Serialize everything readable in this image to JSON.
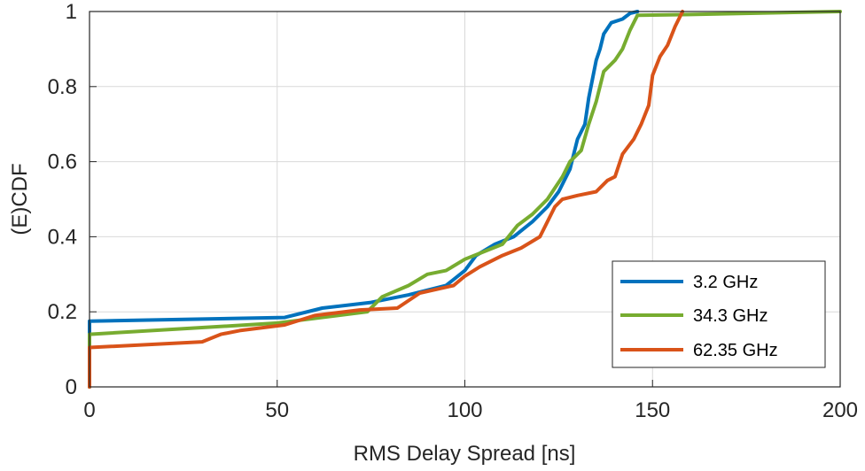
{
  "chart_data": {
    "type": "line",
    "xlabel": "RMS Delay Spread [ns]",
    "ylabel": "(E)CDF",
    "xlim": [
      0,
      200
    ],
    "ylim": [
      0,
      1
    ],
    "x_ticks": [
      "0",
      "50",
      "100",
      "150",
      "200"
    ],
    "y_ticks": [
      "0",
      "0.2",
      "0.4",
      "0.6",
      "0.8",
      "1"
    ],
    "grid": true,
    "legend_position": "bottom-right",
    "series": [
      {
        "name": "3.2 GHz",
        "color": "#0072BD",
        "points": [
          [
            0,
            0
          ],
          [
            0,
            0.175
          ],
          [
            52,
            0.185
          ],
          [
            62,
            0.21
          ],
          [
            75,
            0.225
          ],
          [
            85,
            0.245
          ],
          [
            95,
            0.27
          ],
          [
            100,
            0.31
          ],
          [
            103,
            0.35
          ],
          [
            108,
            0.38
          ],
          [
            113,
            0.4
          ],
          [
            118,
            0.44
          ],
          [
            122,
            0.48
          ],
          [
            125,
            0.52
          ],
          [
            128,
            0.58
          ],
          [
            130,
            0.66
          ],
          [
            132,
            0.7
          ],
          [
            133,
            0.77
          ],
          [
            134,
            0.82
          ],
          [
            135,
            0.87
          ],
          [
            136,
            0.9
          ],
          [
            137,
            0.94
          ],
          [
            139,
            0.97
          ],
          [
            142,
            0.98
          ],
          [
            144,
            0.995
          ],
          [
            146,
            1.0
          ]
        ]
      },
      {
        "name": "34.3 GHz",
        "color": "#77AC30",
        "points": [
          [
            0,
            0
          ],
          [
            0,
            0.14
          ],
          [
            25,
            0.155
          ],
          [
            50,
            0.17
          ],
          [
            74,
            0.2
          ],
          [
            78,
            0.24
          ],
          [
            85,
            0.27
          ],
          [
            90,
            0.3
          ],
          [
            95,
            0.31
          ],
          [
            100,
            0.34
          ],
          [
            105,
            0.36
          ],
          [
            110,
            0.38
          ],
          [
            114,
            0.43
          ],
          [
            118,
            0.46
          ],
          [
            122,
            0.5
          ],
          [
            126,
            0.56
          ],
          [
            128,
            0.6
          ],
          [
            131,
            0.63
          ],
          [
            133,
            0.7
          ],
          [
            135,
            0.76
          ],
          [
            137,
            0.84
          ],
          [
            140,
            0.87
          ],
          [
            142,
            0.9
          ],
          [
            144,
            0.95
          ],
          [
            146,
            0.99
          ],
          [
            160,
            0.992
          ],
          [
            200,
            1.0
          ]
        ]
      },
      {
        "name": "62.35 GHz",
        "color": "#D95319",
        "points": [
          [
            0,
            0
          ],
          [
            0,
            0.105
          ],
          [
            30,
            0.12
          ],
          [
            35,
            0.14
          ],
          [
            40,
            0.15
          ],
          [
            52,
            0.165
          ],
          [
            60,
            0.19
          ],
          [
            72,
            0.205
          ],
          [
            82,
            0.21
          ],
          [
            88,
            0.25
          ],
          [
            97,
            0.27
          ],
          [
            100,
            0.295
          ],
          [
            104,
            0.32
          ],
          [
            110,
            0.35
          ],
          [
            115,
            0.37
          ],
          [
            120,
            0.4
          ],
          [
            124,
            0.48
          ],
          [
            126,
            0.5
          ],
          [
            130,
            0.51
          ],
          [
            135,
            0.52
          ],
          [
            138,
            0.55
          ],
          [
            140,
            0.56
          ],
          [
            142,
            0.62
          ],
          [
            145,
            0.66
          ],
          [
            147,
            0.7
          ],
          [
            149,
            0.75
          ],
          [
            150,
            0.83
          ],
          [
            152,
            0.88
          ],
          [
            154,
            0.91
          ],
          [
            156,
            0.96
          ],
          [
            157,
            0.98
          ],
          [
            158,
            1.0
          ]
        ]
      }
    ]
  }
}
